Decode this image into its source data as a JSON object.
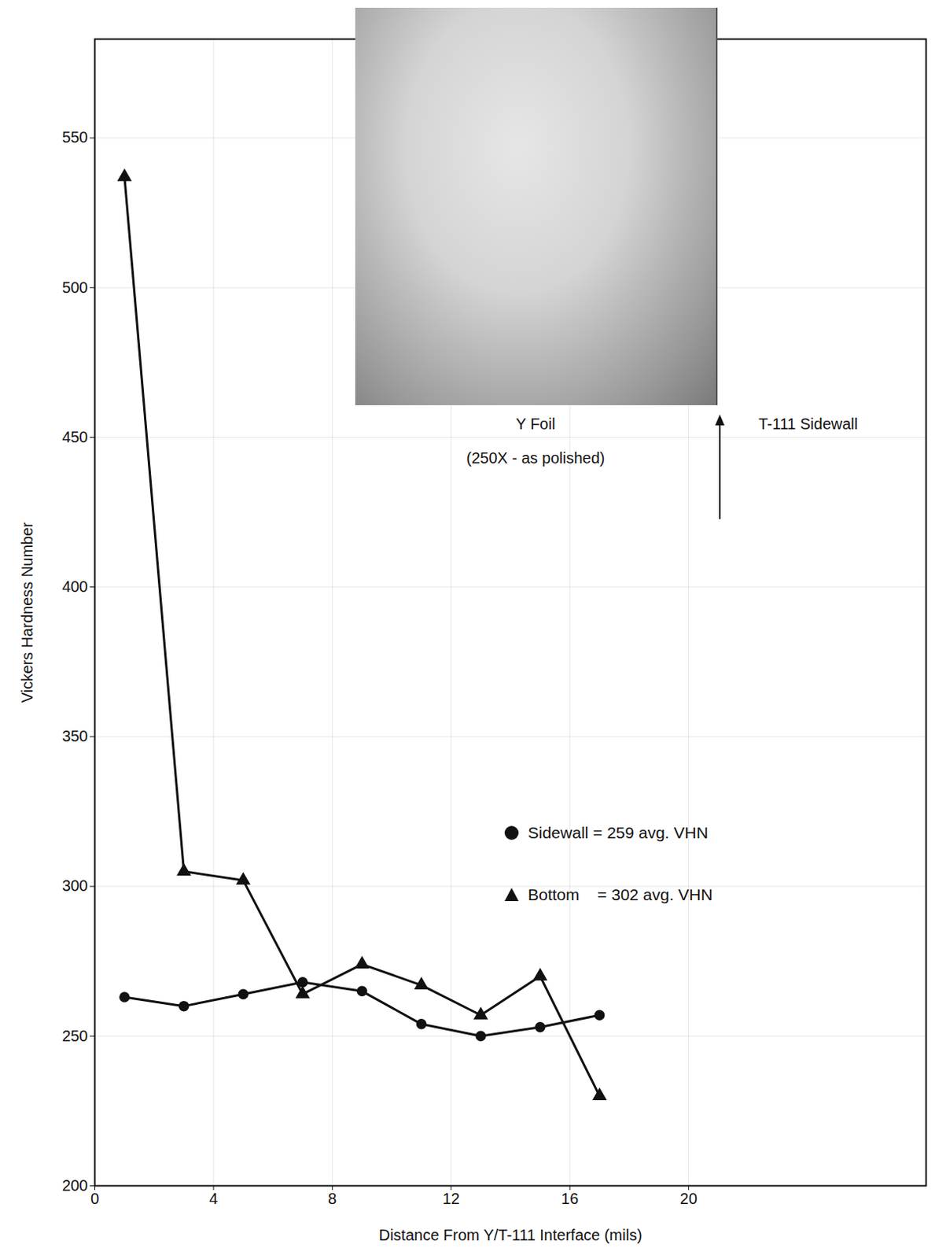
{
  "chart_data": {
    "type": "line",
    "x_label": "Distance From Y/T-111 Interface (mils)",
    "y_label": "Vickers Hardness Number",
    "x": [
      1,
      3,
      5,
      7,
      9,
      11,
      13,
      15,
      17
    ],
    "series": [
      {
        "name": "Sidewall = 259 avg. VHN",
        "color": "#111111",
        "marker": "circle",
        "line_style": "solid",
        "values": [
          263,
          260,
          264,
          268,
          265,
          254,
          250,
          253,
          257
        ]
      },
      {
        "name": "Bottom    = 302 avg. VHN",
        "color": "#111111",
        "marker": "triangle",
        "line_style": "solid",
        "values": [
          537,
          305,
          302,
          264,
          274,
          267,
          257,
          270,
          230
        ]
      }
    ],
    "xlim": [
      0,
      28
    ],
    "xticks": [
      0,
      4,
      8,
      12,
      16,
      20
    ],
    "ylim": [
      200,
      583
    ],
    "yticks": [
      200,
      250,
      300,
      350,
      400,
      450,
      500,
      550
    ],
    "grid": true,
    "legend": "right",
    "annotations": [
      "Y Foil",
      "(250X - as polished)",
      "T-111 Sidewall"
    ]
  }
}
